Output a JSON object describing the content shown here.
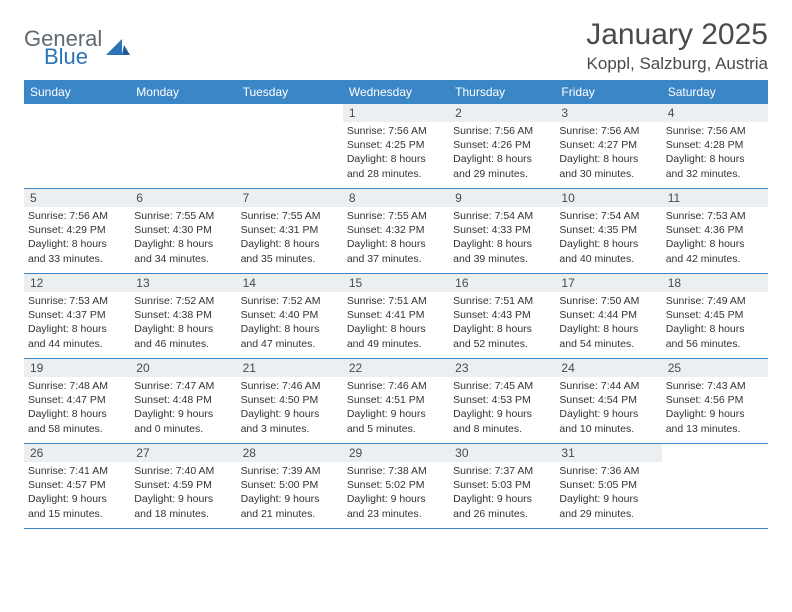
{
  "logo": {
    "general": "General",
    "blue": "Blue"
  },
  "header": {
    "title": "January 2025",
    "location": "Koppl, Salzburg, Austria"
  },
  "colors": {
    "headerBar": "#3b86c6",
    "daynumBg": "#eceff1",
    "text": "#333333",
    "logoGray": "#5f6a72",
    "logoBlue": "#2a74b8",
    "background": "#ffffff"
  },
  "dayNames": [
    "Sunday",
    "Monday",
    "Tuesday",
    "Wednesday",
    "Thursday",
    "Friday",
    "Saturday"
  ],
  "weeks": [
    [
      {
        "n": "",
        "sr": "",
        "ss": "",
        "dh": "",
        "dm": ""
      },
      {
        "n": "",
        "sr": "",
        "ss": "",
        "dh": "",
        "dm": ""
      },
      {
        "n": "",
        "sr": "",
        "ss": "",
        "dh": "",
        "dm": ""
      },
      {
        "n": "1",
        "sr": "7:56 AM",
        "ss": "4:25 PM",
        "dh": "8",
        "dm": "28"
      },
      {
        "n": "2",
        "sr": "7:56 AM",
        "ss": "4:26 PM",
        "dh": "8",
        "dm": "29"
      },
      {
        "n": "3",
        "sr": "7:56 AM",
        "ss": "4:27 PM",
        "dh": "8",
        "dm": "30"
      },
      {
        "n": "4",
        "sr": "7:56 AM",
        "ss": "4:28 PM",
        "dh": "8",
        "dm": "32"
      }
    ],
    [
      {
        "n": "5",
        "sr": "7:56 AM",
        "ss": "4:29 PM",
        "dh": "8",
        "dm": "33"
      },
      {
        "n": "6",
        "sr": "7:55 AM",
        "ss": "4:30 PM",
        "dh": "8",
        "dm": "34"
      },
      {
        "n": "7",
        "sr": "7:55 AM",
        "ss": "4:31 PM",
        "dh": "8",
        "dm": "35"
      },
      {
        "n": "8",
        "sr": "7:55 AM",
        "ss": "4:32 PM",
        "dh": "8",
        "dm": "37"
      },
      {
        "n": "9",
        "sr": "7:54 AM",
        "ss": "4:33 PM",
        "dh": "8",
        "dm": "39"
      },
      {
        "n": "10",
        "sr": "7:54 AM",
        "ss": "4:35 PM",
        "dh": "8",
        "dm": "40"
      },
      {
        "n": "11",
        "sr": "7:53 AM",
        "ss": "4:36 PM",
        "dh": "8",
        "dm": "42"
      }
    ],
    [
      {
        "n": "12",
        "sr": "7:53 AM",
        "ss": "4:37 PM",
        "dh": "8",
        "dm": "44"
      },
      {
        "n": "13",
        "sr": "7:52 AM",
        "ss": "4:38 PM",
        "dh": "8",
        "dm": "46"
      },
      {
        "n": "14",
        "sr": "7:52 AM",
        "ss": "4:40 PM",
        "dh": "8",
        "dm": "47"
      },
      {
        "n": "15",
        "sr": "7:51 AM",
        "ss": "4:41 PM",
        "dh": "8",
        "dm": "49"
      },
      {
        "n": "16",
        "sr": "7:51 AM",
        "ss": "4:43 PM",
        "dh": "8",
        "dm": "52"
      },
      {
        "n": "17",
        "sr": "7:50 AM",
        "ss": "4:44 PM",
        "dh": "8",
        "dm": "54"
      },
      {
        "n": "18",
        "sr": "7:49 AM",
        "ss": "4:45 PM",
        "dh": "8",
        "dm": "56"
      }
    ],
    [
      {
        "n": "19",
        "sr": "7:48 AM",
        "ss": "4:47 PM",
        "dh": "8",
        "dm": "58"
      },
      {
        "n": "20",
        "sr": "7:47 AM",
        "ss": "4:48 PM",
        "dh": "9",
        "dm": "0"
      },
      {
        "n": "21",
        "sr": "7:46 AM",
        "ss": "4:50 PM",
        "dh": "9",
        "dm": "3"
      },
      {
        "n": "22",
        "sr": "7:46 AM",
        "ss": "4:51 PM",
        "dh": "9",
        "dm": "5"
      },
      {
        "n": "23",
        "sr": "7:45 AM",
        "ss": "4:53 PM",
        "dh": "9",
        "dm": "8"
      },
      {
        "n": "24",
        "sr": "7:44 AM",
        "ss": "4:54 PM",
        "dh": "9",
        "dm": "10"
      },
      {
        "n": "25",
        "sr": "7:43 AM",
        "ss": "4:56 PM",
        "dh": "9",
        "dm": "13"
      }
    ],
    [
      {
        "n": "26",
        "sr": "7:41 AM",
        "ss": "4:57 PM",
        "dh": "9",
        "dm": "15"
      },
      {
        "n": "27",
        "sr": "7:40 AM",
        "ss": "4:59 PM",
        "dh": "9",
        "dm": "18"
      },
      {
        "n": "28",
        "sr": "7:39 AM",
        "ss": "5:00 PM",
        "dh": "9",
        "dm": "21"
      },
      {
        "n": "29",
        "sr": "7:38 AM",
        "ss": "5:02 PM",
        "dh": "9",
        "dm": "23"
      },
      {
        "n": "30",
        "sr": "7:37 AM",
        "ss": "5:03 PM",
        "dh": "9",
        "dm": "26"
      },
      {
        "n": "31",
        "sr": "7:36 AM",
        "ss": "5:05 PM",
        "dh": "9",
        "dm": "29"
      },
      {
        "n": "",
        "sr": "",
        "ss": "",
        "dh": "",
        "dm": ""
      }
    ]
  ],
  "labels": {
    "sunrise": "Sunrise:",
    "sunset": "Sunset:",
    "daylight": "Daylight:",
    "hours": "hours",
    "and": "and",
    "minutes": "minutes."
  }
}
